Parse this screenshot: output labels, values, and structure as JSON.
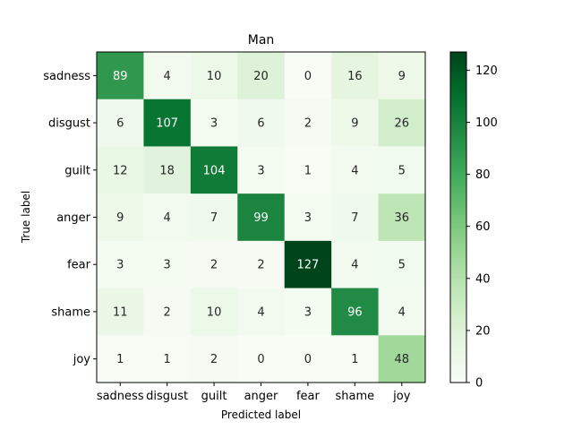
{
  "chart_data": {
    "type": "heatmap",
    "title": "Man",
    "xlabel": "Predicted label",
    "ylabel": "True label",
    "x_categories": [
      "sadness",
      "disgust",
      "guilt",
      "anger",
      "fear",
      "shame",
      "joy"
    ],
    "y_categories": [
      "sadness",
      "disgust",
      "guilt",
      "anger",
      "fear",
      "shame",
      "joy"
    ],
    "values": [
      [
        89,
        4,
        10,
        20,
        0,
        16,
        9
      ],
      [
        6,
        107,
        3,
        6,
        2,
        9,
        26
      ],
      [
        12,
        18,
        104,
        3,
        1,
        4,
        5
      ],
      [
        9,
        4,
        7,
        99,
        3,
        7,
        36
      ],
      [
        3,
        3,
        2,
        2,
        127,
        4,
        5
      ],
      [
        11,
        2,
        10,
        4,
        3,
        96,
        4
      ],
      [
        1,
        1,
        2,
        0,
        0,
        1,
        48
      ]
    ],
    "colorbar": {
      "colormap": "Greens",
      "range": [
        0,
        127
      ],
      "ticks": [
        0,
        20,
        40,
        60,
        80,
        100,
        120
      ]
    },
    "grid": false,
    "text_colors": {
      "light": "#ffffff",
      "dark": "#262626"
    }
  }
}
